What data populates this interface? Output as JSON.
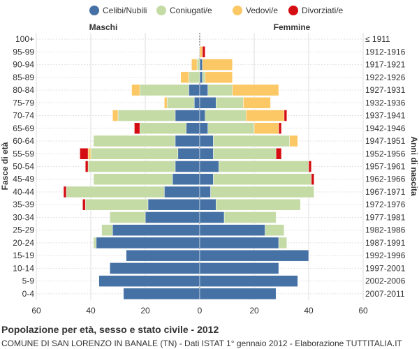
{
  "chart_data": {
    "type": "bar",
    "orientation": "horizontal",
    "layout": "population-pyramid",
    "title": "Popolazione per età, sesso e stato civile - 2012",
    "subtitle": "COMUNE DI SAN LORENZO IN BANALE (TN) - Dati ISTAT 1° gennaio 2012 - Elaborazione TUTTITALIA.IT",
    "left_label": "Maschi",
    "right_label": "Femmine",
    "ylabel_left": "Fasce di età",
    "ylabel_right": "Anni di nascita",
    "xlim": [
      -60,
      60
    ],
    "x_ticks": [
      -60,
      -40,
      -20,
      0,
      20,
      40,
      60
    ],
    "x_tick_labels": [
      "60",
      "40",
      "20",
      "0",
      "20",
      "40",
      "60"
    ],
    "legend": [
      {
        "name": "Celibi/Nubili",
        "color": "#4571a5"
      },
      {
        "name": "Coniugati/e",
        "color": "#c5dba6"
      },
      {
        "name": "Vedovi/e",
        "color": "#fcc865"
      },
      {
        "name": "Divorziati/e",
        "color": "#d40d12"
      }
    ],
    "age_groups": [
      "100+",
      "95-99",
      "90-94",
      "85-89",
      "80-84",
      "75-79",
      "70-74",
      "65-69",
      "60-64",
      "55-59",
      "50-54",
      "45-49",
      "40-44",
      "35-39",
      "30-34",
      "25-29",
      "20-24",
      "15-19",
      "10-14",
      "5-9",
      "0-4"
    ],
    "birth_years": [
      "≤ 1911",
      "1912-1916",
      "1917-1921",
      "1922-1926",
      "1927-1931",
      "1932-1936",
      "1937-1941",
      "1942-1946",
      "1947-1951",
      "1952-1956",
      "1957-1961",
      "1962-1966",
      "1967-1971",
      "1972-1976",
      "1977-1981",
      "1982-1986",
      "1987-1991",
      "1992-1996",
      "1997-2001",
      "2002-2006",
      "2007-2011"
    ],
    "males": {
      "Celibi/Nubili": [
        0,
        0,
        0,
        0,
        4,
        2,
        9,
        5,
        9,
        8,
        9,
        10,
        13,
        19,
        20,
        32,
        38,
        27,
        33,
        37,
        28
      ],
      "Coniugati/e": [
        0,
        0,
        1,
        4,
        18,
        10,
        21,
        17,
        30,
        32,
        32,
        29,
        36,
        23,
        13,
        4,
        1,
        0,
        0,
        0,
        0
      ],
      "Vedovi/e": [
        0,
        0,
        2,
        3,
        3,
        1,
        2,
        0,
        0,
        1,
        0,
        0,
        0,
        0,
        0,
        0,
        0,
        0,
        0,
        0,
        0
      ],
      "Divorziati/e": [
        0,
        0,
        0,
        0,
        0,
        0,
        0,
        2,
        0,
        3,
        1,
        0,
        1,
        1,
        0,
        0,
        0,
        0,
        0,
        0,
        0
      ]
    },
    "females": {
      "Celibi/Nubili": [
        0,
        0,
        1,
        1,
        3,
        6,
        2,
        3,
        5,
        5,
        7,
        5,
        4,
        6,
        9,
        24,
        29,
        40,
        29,
        36,
        28
      ],
      "Coniugati/e": [
        0,
        0,
        0,
        1,
        9,
        10,
        15,
        17,
        28,
        23,
        33,
        36,
        38,
        31,
        19,
        7,
        3,
        0,
        0,
        0,
        0
      ],
      "Vedovi/e": [
        0,
        1,
        11,
        10,
        17,
        10,
        14,
        9,
        3,
        0,
        0,
        0,
        0,
        0,
        0,
        0,
        0,
        0,
        0,
        0,
        0
      ],
      "Divorziati/e": [
        0,
        1,
        0,
        0,
        0,
        0,
        1,
        1,
        0,
        2,
        1,
        1,
        0,
        0,
        0,
        0,
        0,
        0,
        0,
        0,
        0
      ]
    }
  }
}
